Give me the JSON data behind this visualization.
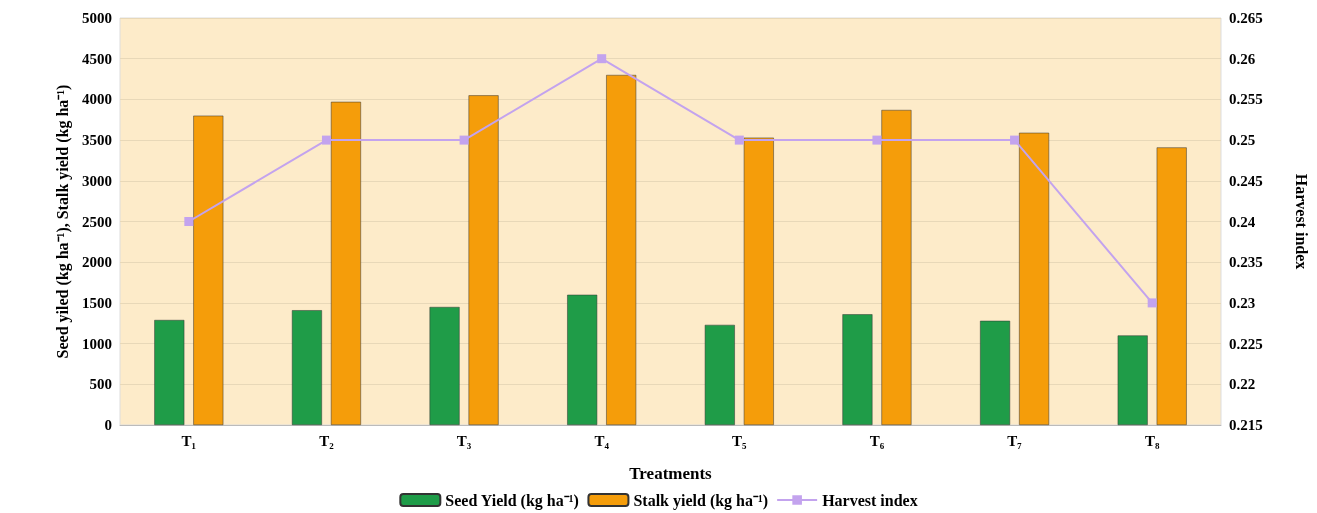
{
  "chart_data": {
    "type": "bar",
    "xlabel": "Treatments",
    "ylabel": "Seed yiled (kg ha⁻¹), Stalk yield (kg ha⁻¹)",
    "y2label": "Harvest index",
    "categories": [
      "T₁",
      "T₂",
      "T₃",
      "T₄",
      "T₅",
      "T₆",
      "T₇",
      "T₈"
    ],
    "series": [
      {
        "name": "Seed Yield (kg ha⁻¹)",
        "color": "#1f9c48",
        "values": [
          1290,
          1410,
          1450,
          1600,
          1230,
          1360,
          1280,
          1100
        ]
      },
      {
        "name": "Stalk yield (kg ha⁻¹)",
        "color": "#f59d0a",
        "values": [
          3800,
          3970,
          4050,
          4300,
          3530,
          3870,
          3590,
          3410
        ]
      },
      {
        "name": "Harvest index",
        "type": "line",
        "axis": "y2",
        "color": "#c3a3ee",
        "marker": "square",
        "values": [
          0.24,
          0.25,
          0.25,
          0.26,
          0.25,
          0.25,
          0.25,
          0.23
        ]
      }
    ],
    "ylim": [
      0,
      5000
    ],
    "yticks": [
      0,
      500,
      1000,
      1500,
      2000,
      2500,
      3000,
      3500,
      4000,
      4500,
      5000
    ],
    "y2lim": [
      0.215,
      0.265
    ],
    "y2ticks": [
      0.215,
      0.22,
      0.225,
      0.23,
      0.235,
      0.24,
      0.245,
      0.25,
      0.255,
      0.26,
      0.265
    ],
    "grid": "y",
    "legend": "bottom"
  }
}
